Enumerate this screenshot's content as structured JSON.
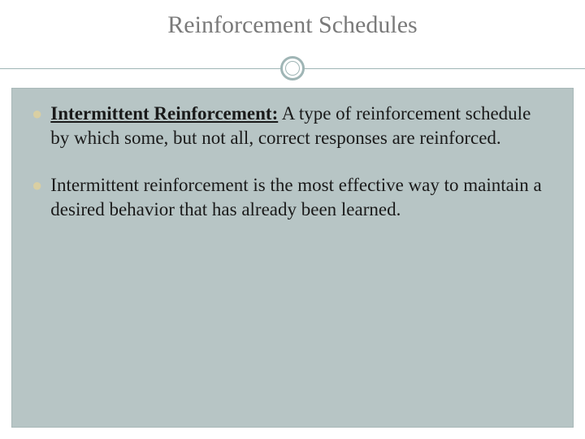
{
  "slide": {
    "title": "Reinforcement Schedules",
    "title_color": "#7a7a7a",
    "title_fontsize": 30,
    "rule_color": "#9fb5b5",
    "circle_border_color": "#9fb5b5",
    "panel_background": "#b7c5c5",
    "panel_border": "#a8b8b8",
    "bullet_marker_color": "#d9cfa3",
    "body_text_color": "#1a1a1a",
    "body_fontsize": 23,
    "bullets": [
      {
        "term": "Intermittent Reinforcement:",
        "rest": " A type of reinforcement schedule by which some, but not all, correct responses are reinforced."
      },
      {
        "term": "",
        "rest": "Intermittent reinforcement is the most effective way to maintain a desired behavior that has already been learned."
      }
    ]
  }
}
